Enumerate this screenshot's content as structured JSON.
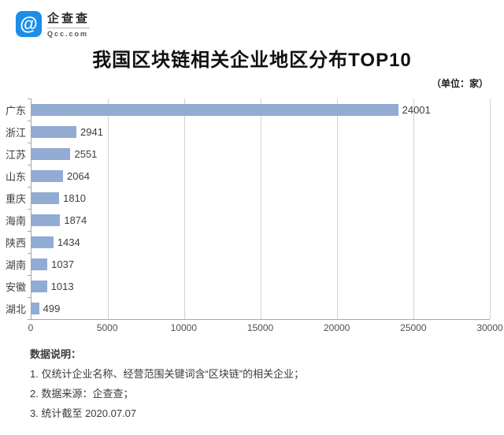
{
  "logo": {
    "name": "企查查",
    "domain": "Qcc.com",
    "brand_color": "#1B8EE8"
  },
  "title": "我国区块链相关企业地区分布TOP10",
  "unit_label": "（单位：家）",
  "chart_data": {
    "type": "bar",
    "orientation": "horizontal",
    "categories": [
      "广东",
      "浙江",
      "江苏",
      "山东",
      "重庆",
      "海南",
      "陕西",
      "湖南",
      "安徽",
      "湖北"
    ],
    "values": [
      24001,
      2941,
      2551,
      2064,
      1810,
      1874,
      1434,
      1037,
      1013,
      499
    ],
    "xlim": [
      0,
      30000
    ],
    "x_ticks": [
      0,
      5000,
      10000,
      15000,
      20000,
      25000,
      30000
    ],
    "grid": true,
    "legend": false,
    "value_labels": true,
    "bar_color": "#91ABD3",
    "grid_color": "#d2d2d2",
    "axis_color": "#a6a6a6"
  },
  "footer": {
    "heading": "数据说明：",
    "notes": [
      "1. 仅统计企业名称、经营范围关键词含“区块链”的相关企业；",
      "2. 数据来源：企查查；",
      "3. 统计截至 2020.07.07"
    ]
  }
}
